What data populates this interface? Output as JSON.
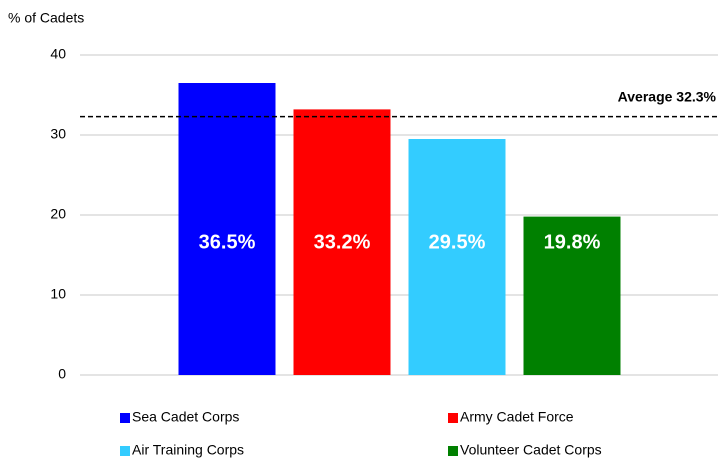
{
  "chart_data": {
    "type": "bar",
    "y_label": "% of Cadets",
    "categories": [
      "Sea Cadet Corps",
      "Army Cadet Force",
      "Air Training Corps",
      "Volunteer Cadet Corps"
    ],
    "values": [
      36.5,
      33.2,
      29.5,
      19.8
    ],
    "value_labels": [
      "36.5%",
      "33.2%",
      "29.5%",
      "19.8%"
    ],
    "colors": [
      "#0000ff",
      "#ff0000",
      "#33ccff",
      "#008000"
    ],
    "ylim": [
      0,
      40
    ],
    "yticks": [
      0,
      10,
      20,
      30,
      40
    ],
    "grid": true,
    "average": 32.3,
    "average_label": "Average 32.3%",
    "legend": "bottom"
  }
}
